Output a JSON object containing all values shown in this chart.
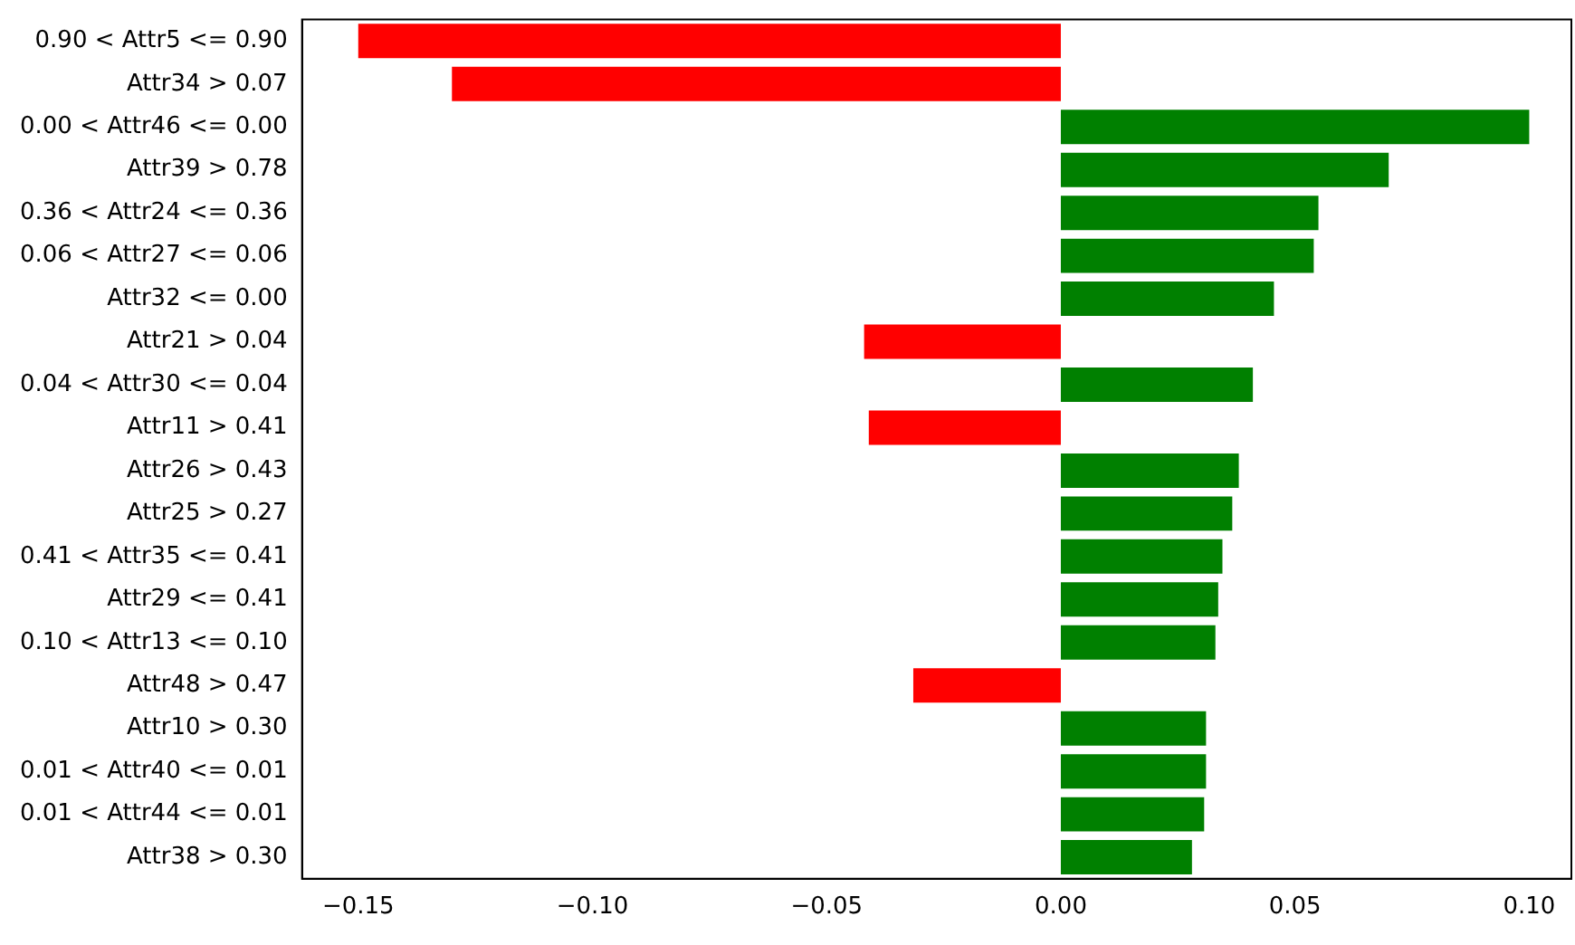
{
  "chart_data": {
    "type": "bar",
    "orientation": "horizontal",
    "categories": [
      "0.90 < Attr5 <= 0.90",
      "Attr34 > 0.07",
      "0.00 < Attr46 <= 0.00",
      "Attr39 > 0.78",
      "0.36 < Attr24 <= 0.36",
      "0.06 < Attr27 <= 0.06",
      "Attr32 <= 0.00",
      "Attr21 > 0.04",
      "0.04 < Attr30 <= 0.04",
      "Attr11 > 0.41",
      "Attr26 > 0.43",
      "Attr25 > 0.27",
      "0.41 < Attr35 <= 0.41",
      "Attr29 <= 0.41",
      "0.10 < Attr13 <= 0.10",
      "Attr48 > 0.47",
      "Attr10 > 0.30",
      "0.01 < Attr40 <= 0.01",
      "0.01 < Attr44 <= 0.01",
      "Attr38 > 0.30"
    ],
    "values": [
      -0.15,
      -0.13,
      0.1,
      0.07,
      0.055,
      0.054,
      0.0455,
      -0.042,
      0.041,
      -0.041,
      0.038,
      0.0366,
      0.0345,
      0.0336,
      0.033,
      -0.0315,
      0.031,
      0.031,
      0.0306,
      0.028
    ],
    "colors": [
      "#ff0000",
      "#ff0000",
      "#008000",
      "#008000",
      "#008000",
      "#008000",
      "#008000",
      "#ff0000",
      "#008000",
      "#ff0000",
      "#008000",
      "#008000",
      "#008000",
      "#008000",
      "#008000",
      "#ff0000",
      "#008000",
      "#008000",
      "#008000",
      "#008000"
    ],
    "xlim": [
      -0.162,
      0.109
    ],
    "xticks": [
      {
        "value": -0.15,
        "label": "−0.15"
      },
      {
        "value": -0.1,
        "label": "−0.10"
      },
      {
        "value": -0.05,
        "label": "−0.05"
      },
      {
        "value": 0,
        "label": "0.00"
      },
      {
        "value": 0.05,
        "label": "0.05"
      },
      {
        "value": 0.1,
        "label": "0.10"
      }
    ],
    "grid": false,
    "legend": false
  }
}
